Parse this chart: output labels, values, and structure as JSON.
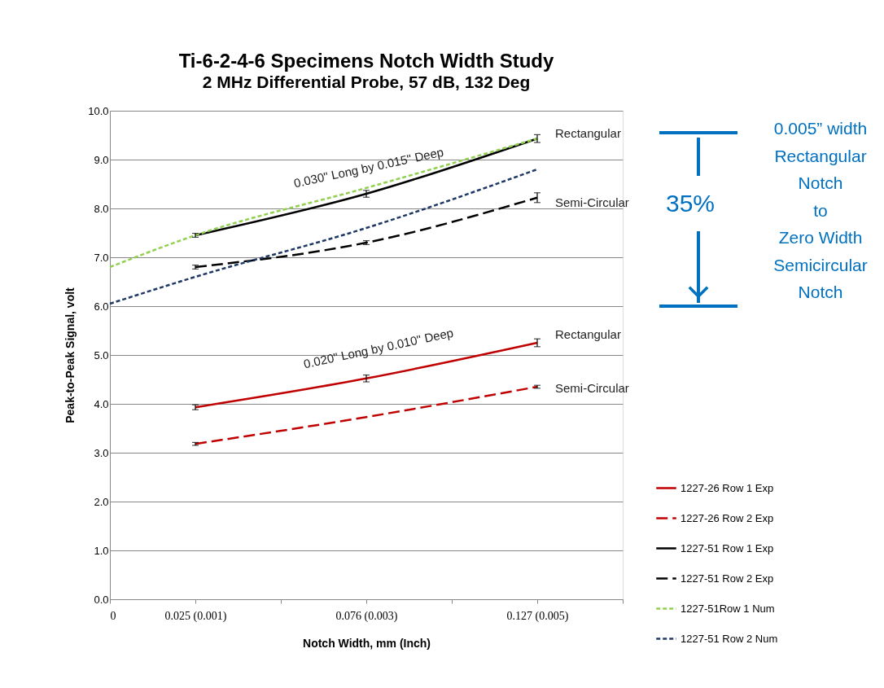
{
  "chart_data": {
    "type": "line",
    "title": "Ti-6-2-4-6 Specimens Notch Width Study",
    "subtitle": "2 MHz Differential Probe, 57 dB, 132 Deg",
    "xlabel": "Notch Width, mm (Inch)",
    "ylabel": "Peak-to-Peak Signal, volt",
    "categories": [
      "0",
      "0.025 (0.001)",
      null,
      "0.076 (0.003)",
      null,
      "0.127 (0.005)",
      null
    ],
    "ylim": [
      0,
      10
    ],
    "yticks": [
      {
        "value": 0,
        "label": "0.0"
      },
      {
        "value": 1,
        "label": "1.0"
      },
      {
        "value": 2,
        "label": "2.0"
      },
      {
        "value": 3,
        "label": "3.0"
      },
      {
        "value": 4,
        "label": "4.0"
      },
      {
        "value": 5,
        "label": "5.0"
      },
      {
        "value": 6,
        "label": "6.0"
      },
      {
        "value": 7,
        "label": "7.0"
      },
      {
        "value": 8,
        "label": "8.0"
      },
      {
        "value": 9,
        "label": "9.0"
      },
      {
        "value": 10,
        "label": "10.0"
      }
    ],
    "grid": "y",
    "legend": "bottom right",
    "marker": "none",
    "series": [
      {
        "name": "1227-26 Row 1 Exp",
        "color": "#c00000",
        "line_style": "solid",
        "values": [
          null,
          3.93,
          null,
          4.52,
          null,
          5.25,
          null
        ],
        "errors": [
          null,
          0.05,
          null,
          0.07,
          null,
          0.08,
          null
        ]
      },
      {
        "name": "1227-26 Row 2 Exp",
        "color": "#c00000",
        "line_style": "dashed",
        "values": [
          null,
          3.18,
          null,
          3.73,
          null,
          4.35,
          null
        ],
        "errors": [
          null,
          0.03,
          null,
          null,
          null,
          0.03,
          null
        ]
      },
      {
        "name": "1227-51 Row 1 Exp",
        "color": "#000000",
        "line_style": "solid",
        "values": [
          null,
          7.45,
          null,
          8.3,
          null,
          9.43,
          null
        ],
        "errors": [
          null,
          0.04,
          null,
          0.07,
          null,
          0.08,
          null
        ]
      },
      {
        "name": "1227-51 Row 2 Exp",
        "color": "#000000",
        "line_style": "dashed",
        "values": [
          null,
          6.8,
          null,
          7.3,
          null,
          8.22,
          null
        ],
        "errors": [
          null,
          0.04,
          null,
          0.04,
          null,
          0.1,
          null
        ]
      },
      {
        "name": "1227-51Row 1 Num",
        "color": "#92d050",
        "line_style": "dotted",
        "values": [
          6.8,
          7.45,
          null,
          8.42,
          null,
          9.43,
          null
        ]
      },
      {
        "name": "1227-51 Row 2 Num",
        "color": "#1f3864",
        "line_style": "dotted",
        "values": [
          6.05,
          6.6,
          null,
          7.6,
          null,
          8.8,
          null
        ]
      }
    ],
    "annotations": [
      {
        "text": "Rectangular",
        "x": "0.127 (0.005)",
        "y": 9.43
      },
      {
        "text": "Semi-Circular",
        "x": "0.127 (0.005)",
        "y": 8.22
      },
      {
        "text": "Rectangular",
        "x": "0.127 (0.005)",
        "y": 5.25
      },
      {
        "text": "Semi-Circular",
        "x": "0.127 (0.005)",
        "y": 4.35
      },
      "0.030\" Long by 0.015\" Deep",
      "0.020\" Long by 0.010\" Deep",
      "35%",
      "0.005” width\nRectangular\nNotch\nto\nZero Width\nSemicircular\nNotch"
    ]
  }
}
